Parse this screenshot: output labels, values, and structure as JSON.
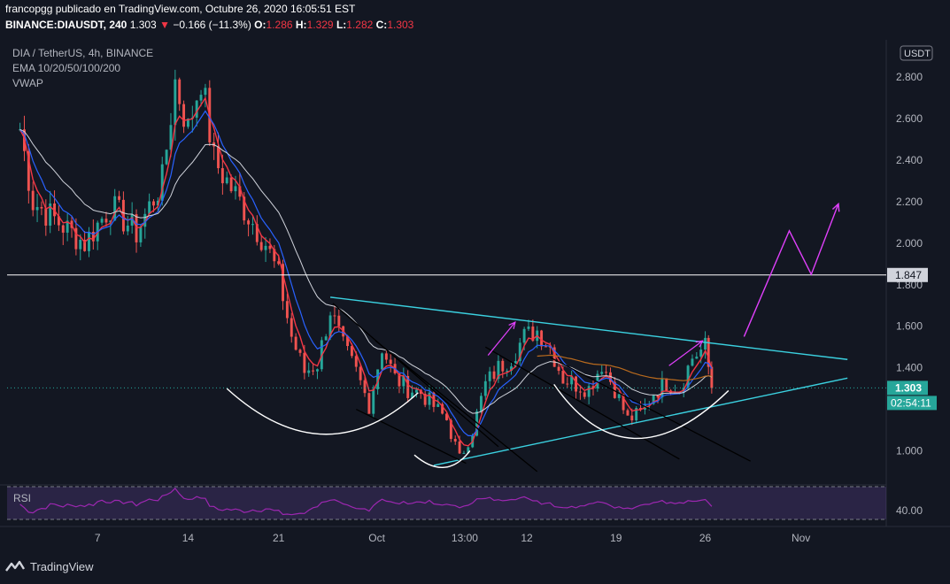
{
  "header": {
    "line1": "francopgg publicado en TradingView.com, Octubre 26, 2020 16:05:51 EST",
    "symbol": "BINANCE:DIAUSDT, 240",
    "last": "1.303",
    "change": "−0.166 (−11.3%)",
    "open_label": "O:",
    "open": "1.286",
    "high_label": "H:",
    "high": "1.329",
    "low_label": "L:",
    "low": "1.282",
    "close_label": "C:",
    "close": "1.303"
  },
  "legend": {
    "title": "DIA / TetherUS, 4h, BINANCE",
    "ema": "EMA 10/20/50/100/200",
    "vwap": "VWAP"
  },
  "currency": "USDT",
  "price_axis": {
    "ticks": [
      "2.800",
      "2.600",
      "2.400",
      "2.200",
      "2.000",
      "1.800",
      "1.600",
      "1.400",
      "1.000"
    ],
    "tick_values": [
      2.8,
      2.6,
      2.4,
      2.2,
      2.0,
      1.8,
      1.6,
      1.4,
      1.0
    ],
    "hline_label": "1.847",
    "hline_value": 1.847,
    "last_label": "1.303",
    "last_value": 1.303,
    "countdown": "02:54:11",
    "range": [
      0.84,
      2.98
    ]
  },
  "time_axis": {
    "labels": [
      "7",
      "14",
      "21",
      "Oct",
      "13:00",
      "12",
      "19",
      "26",
      "Nov"
    ],
    "label_index": [
      7,
      14,
      21,
      28.6,
      35.4,
      40.2,
      47.1,
      54,
      61.4
    ]
  },
  "rsi": {
    "label": "RSI",
    "level_label": "40.00"
  },
  "colors": {
    "background": "#131722",
    "up": "#26a69a",
    "down": "#ef5350",
    "cyan": "#3bd1e0",
    "magenta": "#e040fb",
    "rsi": "#9c27b0"
  },
  "brand": "TradingView",
  "chart_data": {
    "type": "candlestick",
    "series": [
      {
        "name": "DIA / TetherUS, 4h, BINANCE",
        "interval": "4h",
        "anchor_closes_by_day": [
          {
            "day": 1,
            "close": 2.55
          },
          {
            "day": 2,
            "close": 2.2
          },
          {
            "day": 4,
            "close": 2.1
          },
          {
            "day": 6,
            "close": 2.0
          },
          {
            "day": 8,
            "close": 2.18
          },
          {
            "day": 10,
            "close": 2.05
          },
          {
            "day": 12,
            "close": 2.3
          },
          {
            "day": 13,
            "close": 2.78
          },
          {
            "day": 14,
            "close": 2.55
          },
          {
            "day": 15,
            "close": 2.8
          },
          {
            "day": 16,
            "close": 2.4
          },
          {
            "day": 18,
            "close": 2.2
          },
          {
            "day": 20,
            "close": 2.0
          },
          {
            "day": 21,
            "close": 1.84
          },
          {
            "day": 22,
            "close": 1.55
          },
          {
            "day": 23,
            "close": 1.38
          },
          {
            "day": 24,
            "close": 1.42
          },
          {
            "day": 25,
            "close": 1.68
          },
          {
            "day": 26,
            "close": 1.5
          },
          {
            "day": 27,
            "close": 1.38
          },
          {
            "day": 28,
            "close": 1.22
          },
          {
            "day": 29,
            "close": 1.5
          },
          {
            "day": 30,
            "close": 1.35
          },
          {
            "day": 31,
            "close": 1.3
          },
          {
            "day": 32,
            "close": 1.28
          },
          {
            "day": 34,
            "close": 1.15
          },
          {
            "day": 35,
            "close": 0.96
          },
          {
            "day": 36,
            "close": 1.1
          },
          {
            "day": 37,
            "close": 1.32
          },
          {
            "day": 38,
            "close": 1.4
          },
          {
            "day": 39,
            "close": 1.45
          },
          {
            "day": 40,
            "close": 1.55
          },
          {
            "day": 41,
            "close": 1.58
          },
          {
            "day": 42,
            "close": 1.5
          },
          {
            "day": 43,
            "close": 1.35
          },
          {
            "day": 44,
            "close": 1.32
          },
          {
            "day": 45,
            "close": 1.3
          },
          {
            "day": 46,
            "close": 1.42
          },
          {
            "day": 47,
            "close": 1.3
          },
          {
            "day": 48,
            "close": 1.15
          },
          {
            "day": 49,
            "close": 1.18
          },
          {
            "day": 50,
            "close": 1.28
          },
          {
            "day": 51,
            "close": 1.33
          },
          {
            "day": 52,
            "close": 1.3
          },
          {
            "day": 53,
            "close": 1.45
          },
          {
            "day": 54,
            "close": 1.5
          },
          {
            "day": 54.5,
            "close": 1.303
          }
        ]
      }
    ],
    "horizontal_lines": [
      1.847
    ],
    "trendlines": [
      {
        "name": "resistance",
        "from": {
          "day": 25,
          "price": 1.74
        },
        "to": {
          "day": 65,
          "price": 1.44
        }
      },
      {
        "name": "support",
        "from": {
          "day": 33,
          "price": 0.93
        },
        "to": {
          "day": 65,
          "price": 1.35
        }
      }
    ],
    "projection_path": [
      {
        "day": 57,
        "price": 1.55
      },
      {
        "day": 60.5,
        "price": 2.06
      },
      {
        "day": 62.2,
        "price": 1.85
      },
      {
        "day": 64.3,
        "price": 2.19
      }
    ],
    "rsi_level": 40.0,
    "ylim": [
      0.84,
      2.98
    ],
    "xlim_days": [
      0,
      68
    ]
  }
}
